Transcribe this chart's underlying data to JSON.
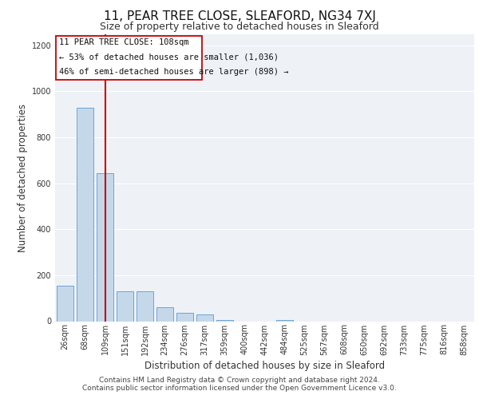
{
  "title": "11, PEAR TREE CLOSE, SLEAFORD, NG34 7XJ",
  "subtitle": "Size of property relative to detached houses in Sleaford",
  "xlabel": "Distribution of detached houses by size in Sleaford",
  "ylabel": "Number of detached properties",
  "footer1": "Contains HM Land Registry data © Crown copyright and database right 2024.",
  "footer2": "Contains public sector information licensed under the Open Government Licence v3.0.",
  "annotation_line1": "11 PEAR TREE CLOSE: 108sqm",
  "annotation_line2": "← 53% of detached houses are smaller (1,036)",
  "annotation_line3": "46% of semi-detached houses are larger (898) →",
  "bar_color": "#c5d8ea",
  "bar_edge_color": "#5b9bd5",
  "vline_color": "#cc0000",
  "categories": [
    "26sqm",
    "68sqm",
    "109sqm",
    "151sqm",
    "192sqm",
    "234sqm",
    "276sqm",
    "317sqm",
    "359sqm",
    "400sqm",
    "442sqm",
    "484sqm",
    "525sqm",
    "567sqm",
    "608sqm",
    "650sqm",
    "692sqm",
    "733sqm",
    "775sqm",
    "816sqm",
    "858sqm"
  ],
  "values": [
    155,
    930,
    645,
    130,
    130,
    60,
    35,
    30,
    5,
    0,
    0,
    5,
    0,
    0,
    0,
    0,
    0,
    0,
    0,
    0,
    0
  ],
  "vline_x": 2,
  "ylim": [
    0,
    1250
  ],
  "yticks": [
    0,
    200,
    400,
    600,
    800,
    1000,
    1200
  ],
  "background_color": "#eef2f7",
  "grid_color": "#ffffff",
  "title_fontsize": 11,
  "subtitle_fontsize": 9,
  "axis_label_fontsize": 8.5,
  "tick_fontsize": 7,
  "footer_fontsize": 6.5,
  "annotation_fontsize": 7.5
}
